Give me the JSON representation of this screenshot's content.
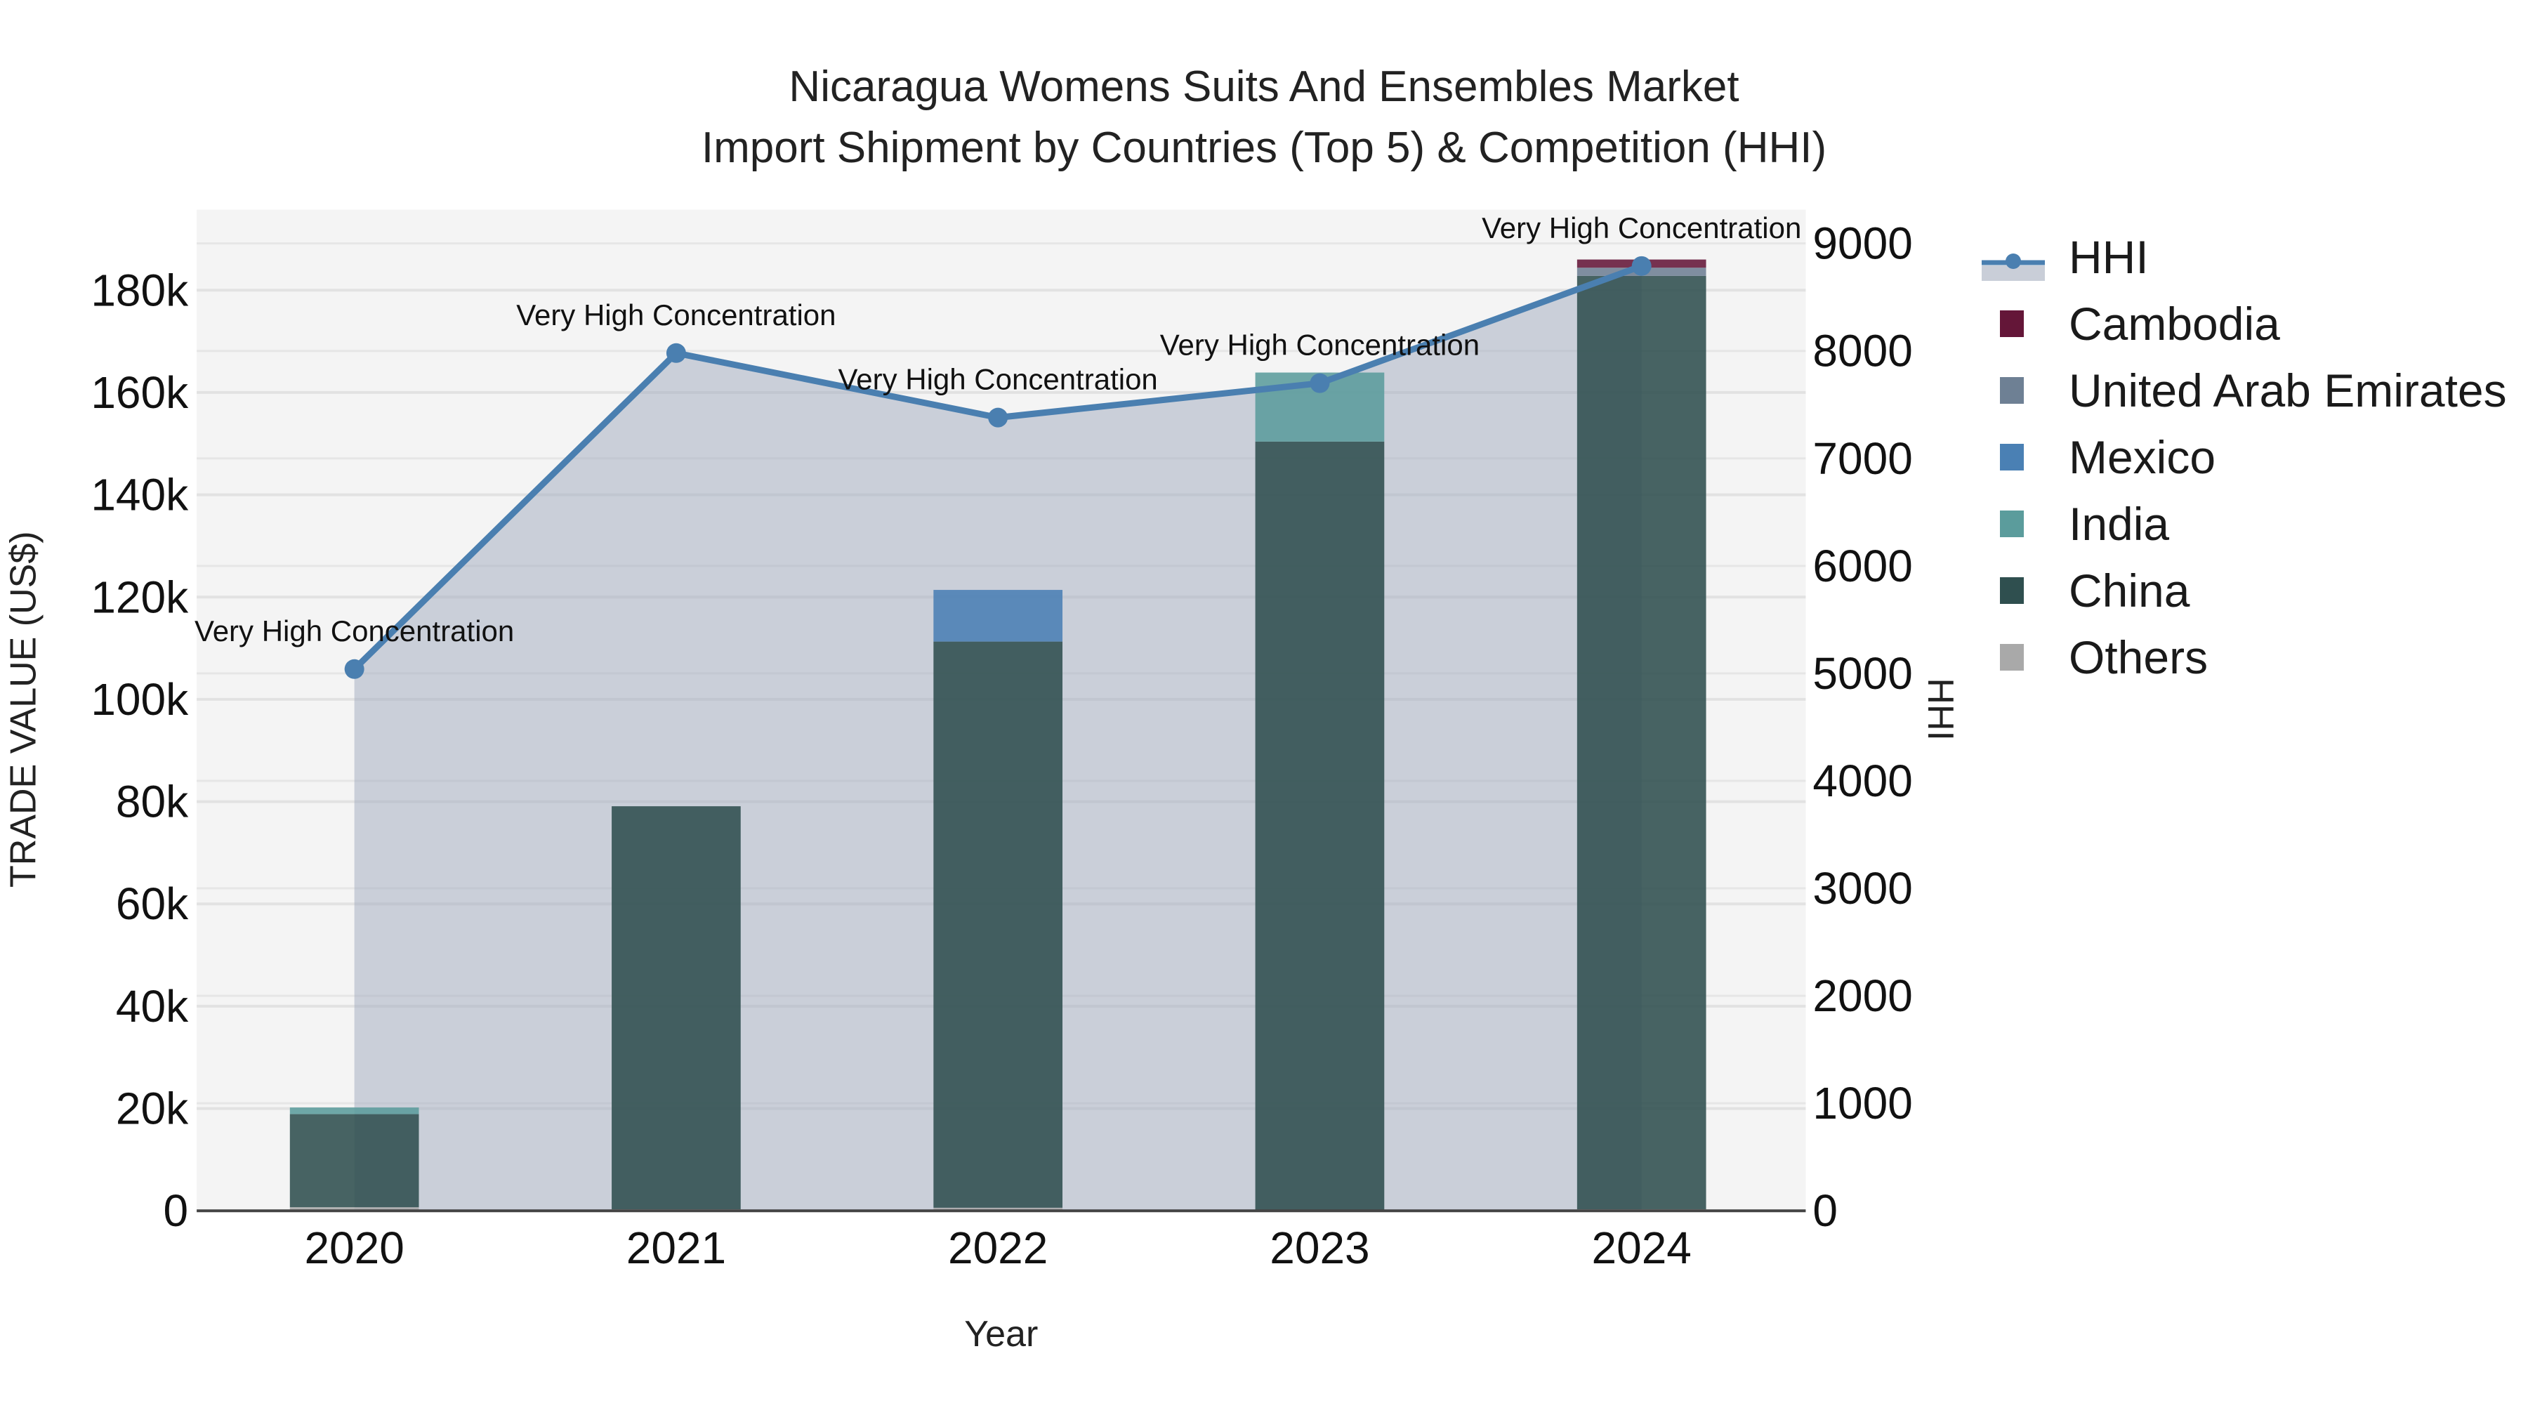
{
  "title": {
    "line1": "Nicaragua Womens Suits And Ensembles Market",
    "line2": "Import Shipment by Countries (Top 5) & Competition (HHI)"
  },
  "axes": {
    "x_label": "Year",
    "y_left_label": "TRADE VALUE (US$)",
    "y_right_label": "HHI",
    "y_left_ticks": [
      "0",
      "20k",
      "40k",
      "60k",
      "80k",
      "100k",
      "120k",
      "140k",
      "160k",
      "180k"
    ],
    "y_right_ticks": [
      "0",
      "1000",
      "2000",
      "3000",
      "4000",
      "5000",
      "6000",
      "7000",
      "8000",
      "9000"
    ],
    "x_ticks": [
      "2020",
      "2021",
      "2022",
      "2023",
      "2024"
    ]
  },
  "legend": {
    "items": [
      {
        "label": "HHI",
        "color": "#4a7fb0",
        "type": "line"
      },
      {
        "label": "Cambodia",
        "color": "#641638",
        "type": "bar"
      },
      {
        "label": "United Arab Emirates",
        "color": "#6e8094",
        "type": "bar"
      },
      {
        "label": "Mexico",
        "color": "#4a80b4",
        "type": "bar"
      },
      {
        "label": "India",
        "color": "#5b9c9c",
        "type": "bar"
      },
      {
        "label": "China",
        "color": "#2f4f4f",
        "type": "bar"
      },
      {
        "label": "Others",
        "color": "#a9a9a9",
        "type": "bar"
      }
    ]
  },
  "annotations": [
    "Very High Concentration",
    "Very High Concentration",
    "Very High Concentration",
    "Very High Concentration",
    "Very High Concentration"
  ],
  "chart_data": {
    "type": "bar",
    "title": "Nicaragua Womens Suits And Ensembles Market Import Shipment by Countries (Top 5) & Competition (HHI)",
    "xlabel": "Year",
    "ylabel": "TRADE VALUE (US$)",
    "y2label": "HHI",
    "categories": [
      "2020",
      "2021",
      "2022",
      "2023",
      "2024"
    ],
    "ylim": [
      0,
      195000
    ],
    "y2lim": [
      0,
      9300
    ],
    "stacked": true,
    "series": [
      {
        "name": "Others",
        "color": "#a9a9a9",
        "values": [
          700,
          300,
          600,
          200,
          300
        ]
      },
      {
        "name": "China",
        "color": "#2f4f4f",
        "values": [
          18200,
          78800,
          110700,
          150200,
          182500
        ]
      },
      {
        "name": "India",
        "color": "#5b9c9c",
        "values": [
          1300,
          0,
          0,
          13500,
          0
        ]
      },
      {
        "name": "Mexico",
        "color": "#4a80b4",
        "values": [
          0,
          0,
          10100,
          0,
          0
        ]
      },
      {
        "name": "United Arab Emirates",
        "color": "#6e8094",
        "values": [
          0,
          0,
          0,
          0,
          1600
        ]
      },
      {
        "name": "Cambodia",
        "color": "#641638",
        "values": [
          0,
          0,
          0,
          0,
          1600
        ]
      }
    ],
    "line_series": {
      "name": "HHI",
      "axis": "right",
      "color": "#4a7fb0",
      "fill": "tozeroy",
      "values": [
        5040,
        7980,
        7380,
        7700,
        8790
      ]
    },
    "point_labels": [
      "Very High Concentration",
      "Very High Concentration",
      "Very High Concentration",
      "Very High Concentration",
      "Very High Concentration"
    ],
    "grid": true,
    "legend_position": "right"
  }
}
